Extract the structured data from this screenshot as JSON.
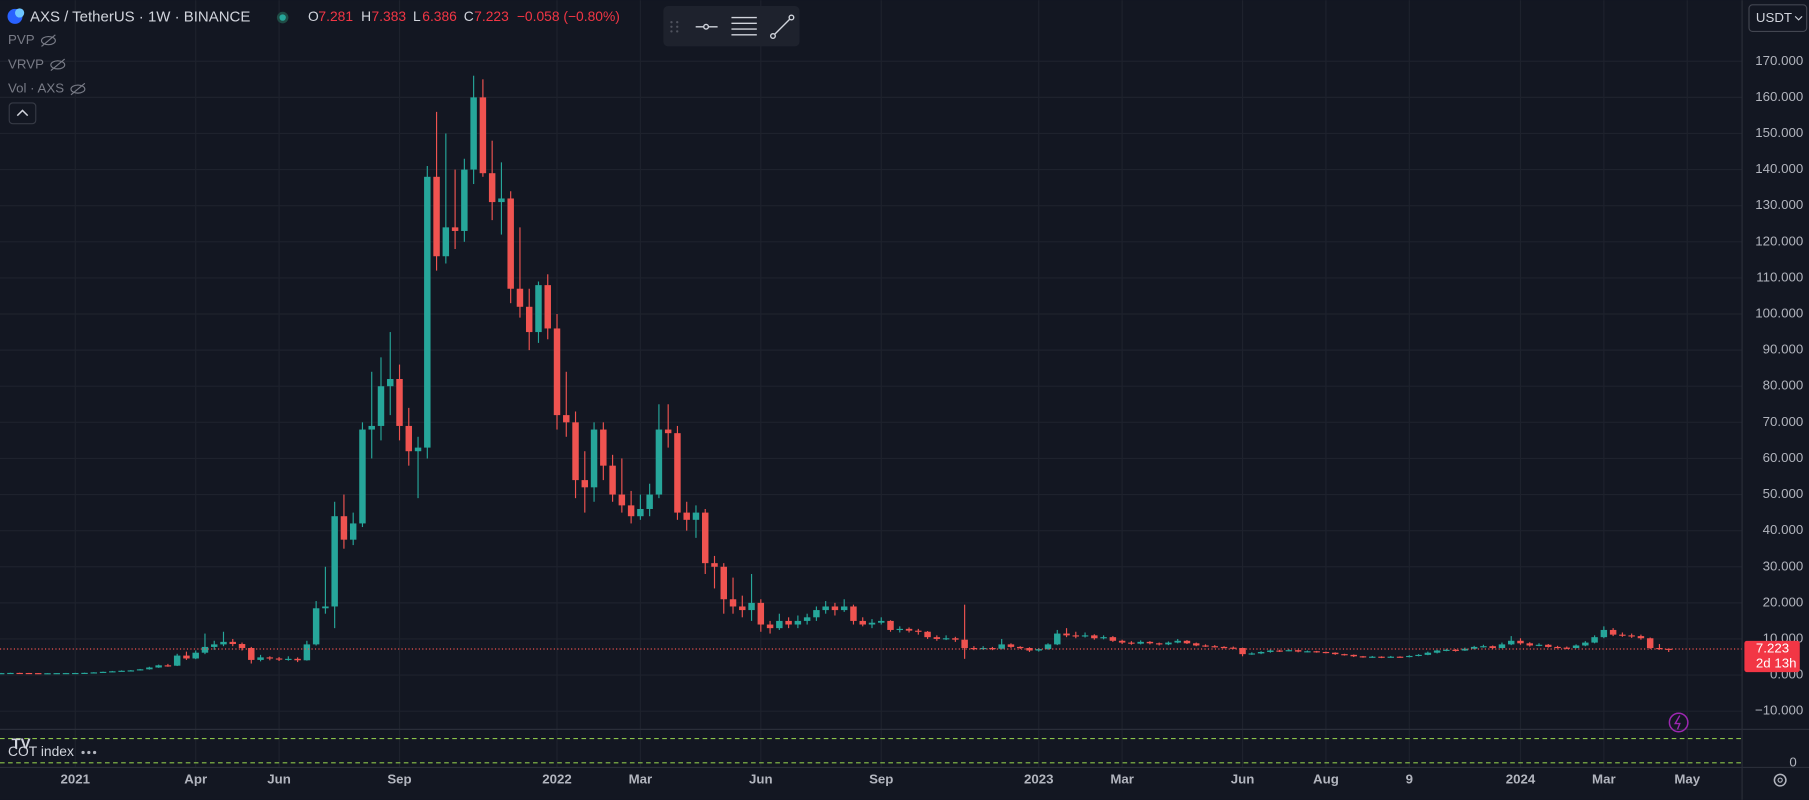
{
  "chart_data": {
    "type": "candlestick",
    "categories": [
      null,
      null,
      null,
      null,
      null,
      null,
      null,
      null,
      "2021",
      null,
      null,
      null,
      null,
      null,
      null,
      null,
      null,
      null,
      null,
      null,
      null,
      "Apr",
      null,
      null,
      null,
      null,
      null,
      null,
      null,
      null,
      "Jun",
      null,
      null,
      null,
      null,
      null,
      null,
      null,
      null,
      null,
      null,
      null,
      null,
      "Sep",
      null,
      null,
      null,
      null,
      null,
      null,
      null,
      null,
      null,
      null,
      null,
      null,
      null,
      null,
      null,
      null,
      "2022",
      null,
      null,
      null,
      null,
      null,
      null,
      null,
      null,
      "Mar",
      null,
      null,
      null,
      null,
      null,
      null,
      null,
      null,
      null,
      null,
      null,
      null,
      "Jun",
      null,
      null,
      null,
      null,
      null,
      null,
      null,
      null,
      null,
      null,
      null,
      null,
      "Sep",
      null,
      null,
      null,
      null,
      null,
      null,
      null,
      null,
      null,
      null,
      null,
      null,
      null,
      null,
      null,
      null,
      "2023",
      null,
      null,
      null,
      null,
      null,
      null,
      null,
      null,
      "Mar",
      null,
      null,
      null,
      null,
      null,
      null,
      null,
      null,
      null,
      null,
      null,
      null,
      "Jun",
      null,
      null,
      null,
      null,
      null,
      null,
      null,
      null,
      "Aug",
      null,
      null,
      null,
      null,
      null,
      null,
      null,
      null,
      "9",
      null,
      null,
      null,
      null,
      null,
      null,
      null,
      null,
      null,
      null,
      null,
      "2024",
      null,
      null,
      null,
      null,
      null,
      null,
      null,
      null,
      "Mar",
      null,
      null,
      null,
      null,
      null,
      null,
      null,
      null,
      "May"
    ],
    "open": [
      0.5,
      0.55,
      0.6,
      0.58,
      0.55,
      0.5,
      0.52,
      0.55,
      0.56,
      0.58,
      0.62,
      0.75,
      0.9,
      1.05,
      1.2,
      1.3,
      1.6,
      2.1,
      2.7,
      2.6,
      5.4,
      4.6,
      6.2,
      7.8,
      8.5,
      9.2,
      8.6,
      7.5,
      4.2,
      4.9,
      4.6,
      4.3,
      4.5,
      4.1,
      8.5,
      18.5,
      19,
      44,
      37.5,
      42,
      68,
      69,
      80,
      82,
      69,
      62,
      63,
      138,
      116,
      124,
      123,
      140,
      160,
      139,
      131,
      132,
      107,
      102,
      95,
      108,
      96,
      72,
      70,
      54,
      52,
      68,
      58,
      50,
      47,
      44,
      46,
      50,
      68,
      67,
      45,
      43,
      45,
      31,
      30,
      21,
      19,
      18,
      20,
      14,
      13,
      15,
      14,
      15,
      16,
      18,
      19,
      18,
      19,
      15,
      14,
      14.5,
      15,
      12.5,
      12.8,
      12.3,
      12,
      10.5,
      10,
      10.2,
      9.8,
      7.5,
      7.2,
      7.5,
      7.3,
      8.5,
      7.8,
      7.5,
      6.8,
      7.2,
      8.5,
      11.5,
      11,
      10.8,
      11,
      10.2,
      10.5,
      9.5,
      9,
      8.7,
      9.2,
      8.8,
      8.5,
      9,
      9.5,
      8.8,
      8.2,
      8,
      7.8,
      7.6,
      7.5,
      5.8,
      6,
      6.4,
      6.8,
      6.7,
      6.9,
      6.5,
      6.6,
      6.4,
      6.2,
      5.8,
      5.6,
      5.2,
      5,
      5.1,
      4.9,
      5.1,
      5,
      5.3,
      5.6,
      6.2,
      6.8,
      7,
      6.8,
      7.3,
      7.8,
      8,
      7.5,
      8.5,
      9.5,
      8.8,
      8.2,
      8.4,
      7.8,
      7.6,
      7.5,
      8.2,
      9,
      10.5,
      12.5,
      11.2,
      11,
      10.8,
      10.2,
      7.5,
      7.281,
      null,
      null
    ],
    "high": [
      0.6,
      0.63,
      0.64,
      0.6,
      0.57,
      0.55,
      0.58,
      0.6,
      0.62,
      0.66,
      0.8,
      0.95,
      1.15,
      1.3,
      1.4,
      1.7,
      2.3,
      2.9,
      3.1,
      5.9,
      6.5,
      6.8,
      11.5,
      9.5,
      12,
      10,
      9,
      7.8,
      5.6,
      5.2,
      5,
      5.2,
      4.9,
      9.5,
      20.5,
      30,
      48,
      50,
      45,
      70,
      84,
      88,
      95,
      86,
      74,
      66,
      141,
      156,
      150,
      140,
      143,
      166,
      165,
      148,
      142,
      134,
      124,
      107,
      109,
      111,
      100,
      84,
      73,
      62,
      70,
      70,
      61,
      60,
      51,
      50,
      53,
      75,
      75,
      69,
      48,
      47,
      46,
      33,
      31,
      27,
      22,
      28,
      21,
      15,
      17,
      16,
      16.5,
      17,
      19,
      20.5,
      20,
      21,
      19.5,
      16,
      15.5,
      16,
      15.2,
      13.5,
      13.2,
      12.8,
      12.2,
      11,
      11,
      10.6,
      19.5,
      8,
      8,
      7.8,
      10,
      8.8,
      8,
      7.7,
      7.5,
      8.8,
      12.5,
      13,
      12,
      11.8,
      11.3,
      11,
      10.8,
      9.8,
      9.4,
      9.6,
      9.4,
      9,
      9.3,
      10,
      9.7,
      9,
      8.5,
      8.3,
      8,
      7.9,
      7.6,
      6.3,
      6.6,
      7.1,
      7,
      7.2,
      7,
      6.8,
      6.7,
      6.5,
      6.3,
      5.9,
      5.7,
      5.3,
      5.3,
      5.2,
      5.3,
      5.2,
      5.5,
      5.8,
      6.5,
      7,
      7.3,
      7.2,
      7.6,
      8.1,
      8.4,
      8.2,
      9,
      10.8,
      10.2,
      9.1,
      8.8,
      8.6,
      8.1,
      7.9,
      8.5,
      9.4,
      11,
      13.5,
      13,
      11.8,
      11.5,
      11.2,
      10.4,
      8.6,
      7.383,
      null,
      null
    ],
    "low": [
      0.48,
      0.52,
      0.55,
      0.52,
      0.47,
      0.48,
      0.5,
      0.53,
      0.54,
      0.56,
      0.6,
      0.72,
      0.85,
      1,
      1.1,
      1.25,
      1.5,
      2,
      2.3,
      2.5,
      4.2,
      4.4,
      5.8,
      7,
      8,
      8,
      6.8,
      3.2,
      3.8,
      4.1,
      3.9,
      4,
      3.6,
      4,
      8.2,
      17,
      13,
      35,
      36,
      41,
      60,
      65,
      72,
      65,
      58,
      49,
      60,
      112,
      114,
      118,
      120,
      136,
      138,
      126,
      122,
      103,
      99,
      90,
      92,
      93,
      68,
      66,
      49,
      45,
      48,
      54,
      48,
      45,
      42,
      43,
      44,
      49,
      63,
      43,
      40,
      38,
      28,
      24,
      17,
      17,
      16,
      15,
      12,
      11.5,
      12.5,
      13,
      13,
      14,
      15,
      17,
      16.5,
      17.5,
      14,
      13.5,
      13,
      14,
      12,
      11.8,
      11.8,
      11.2,
      10,
      9.5,
      9.7,
      9.2,
      4.5,
      6.9,
      7,
      6.9,
      7.1,
      7.5,
      7.2,
      6.4,
      6.5,
      7,
      8.3,
      10.5,
      10.2,
      10.4,
      9.8,
      9.9,
      9.2,
      8.6,
      8.4,
      8.5,
      8.5,
      8.2,
      8.3,
      8.8,
      8.6,
      8,
      7.8,
      7.6,
      7.4,
      7.3,
      5.2,
      5.6,
      5.8,
      6.2,
      6.4,
      6.6,
      6.3,
      6.3,
      6.2,
      6,
      5.6,
      5.4,
      5,
      4.8,
      4.8,
      4.7,
      4.8,
      4.8,
      4.9,
      5.2,
      5.5,
      6,
      6.6,
      6.5,
      6.7,
      7.1,
      7.6,
      7.2,
      7.4,
      8.3,
      8.4,
      7.9,
      8,
      7.6,
      7.4,
      7.2,
      7.4,
      8,
      8.8,
      10.2,
      10.8,
      10.6,
      10.3,
      9.8,
      7.2,
      7,
      6.386,
      null,
      null
    ],
    "close": [
      0.55,
      0.6,
      0.58,
      0.55,
      0.5,
      0.52,
      0.55,
      0.56,
      0.58,
      0.62,
      0.75,
      0.9,
      1.05,
      1.2,
      1.3,
      1.6,
      2.1,
      2.7,
      2.6,
      5.4,
      4.6,
      6.2,
      7.8,
      8.5,
      9.2,
      8.6,
      7.5,
      4.2,
      4.9,
      4.6,
      4.3,
      4.5,
      4.1,
      8.5,
      18.5,
      19,
      44,
      37.5,
      42,
      68,
      69,
      80,
      82,
      69,
      62,
      63,
      138,
      116,
      124,
      123,
      140,
      160,
      139,
      131,
      132,
      107,
      102,
      95,
      108,
      96,
      72,
      70,
      54,
      52,
      68,
      58,
      50,
      47,
      44,
      46,
      50,
      68,
      67,
      45,
      43,
      45,
      31,
      30,
      21,
      19,
      18,
      20,
      14,
      13,
      15,
      14,
      15,
      16,
      18,
      19,
      18,
      19,
      15,
      14,
      14.5,
      15,
      12.5,
      12.8,
      12.3,
      12,
      10.5,
      10,
      10.2,
      9.8,
      7.5,
      7.2,
      7.5,
      7.3,
      8.5,
      7.8,
      7.5,
      6.8,
      7.2,
      8.5,
      11.5,
      11,
      10.8,
      11,
      10.2,
      10.5,
      9.5,
      9,
      8.7,
      9.2,
      8.8,
      8.5,
      9,
      9.5,
      8.8,
      8.2,
      8,
      7.8,
      7.6,
      7.5,
      5.8,
      6,
      6.4,
      6.8,
      6.7,
      6.9,
      6.5,
      6.6,
      6.4,
      6.2,
      5.8,
      5.6,
      5.2,
      5,
      5.1,
      4.9,
      5.1,
      5,
      5.3,
      5.6,
      6.2,
      6.8,
      7,
      6.8,
      7.3,
      7.8,
      8,
      7.5,
      8.5,
      9.5,
      8.8,
      8.2,
      8.4,
      7.8,
      7.6,
      7.5,
      8.2,
      9,
      10.5,
      12.5,
      11.2,
      11,
      10.8,
      10.2,
      7.5,
      7.281,
      7.223,
      null,
      null
    ],
    "up_color": "#26a69a",
    "down_color": "#ef5350",
    "ylim": [
      -14.4,
      186.9
    ],
    "yticks": [
      {
        "value": -10,
        "label": "−10.000"
      },
      {
        "value": 0,
        "label": "0.000"
      },
      {
        "value": 10,
        "label": "10.000"
      },
      {
        "value": 20,
        "label": "20.000"
      },
      {
        "value": 30,
        "label": "30.000"
      },
      {
        "value": 40,
        "label": "40.000"
      },
      {
        "value": 50,
        "label": "50.000"
      },
      {
        "value": 60,
        "label": "60.000"
      },
      {
        "value": 70,
        "label": "70.000"
      },
      {
        "value": 80,
        "label": "80.000"
      },
      {
        "value": 90,
        "label": "90.000"
      },
      {
        "value": 100,
        "label": "100.000"
      },
      {
        "value": 110,
        "label": "110.000"
      },
      {
        "value": 120,
        "label": "120.000"
      },
      {
        "value": 130,
        "label": "130.000"
      },
      {
        "value": 140,
        "label": "140.000"
      },
      {
        "value": 150,
        "label": "150.000"
      },
      {
        "value": 160,
        "label": "160.000"
      },
      {
        "value": 170,
        "label": "170.000"
      }
    ],
    "grid": true,
    "last_price_line": true
  },
  "header": {
    "symbol": "AXS / TetherUS · 1W · BINANCE",
    "open_label": "O",
    "high_label": "H",
    "low_label": "L",
    "close_label": "C",
    "change": "−0.058 (−0.80%)"
  },
  "indicators": [
    "PVP",
    "VRVP",
    "Vol · AXS"
  ],
  "currency": "USDT",
  "countdown": "2d 13h",
  "cot_pane": {
    "title": "COT index",
    "yticks": [
      0
    ]
  }
}
